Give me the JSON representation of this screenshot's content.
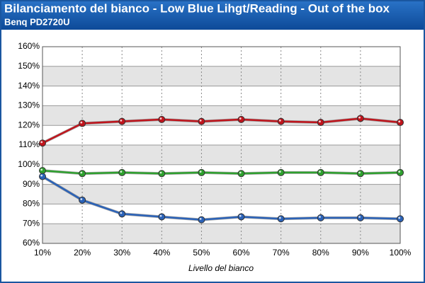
{
  "chart_data": {
    "type": "line",
    "title": "Bilanciamento del bianco - Low Blue Lihgt/Reading - Out of the box",
    "subtitle": "Benq PD2720U",
    "x_label": "Livello del bianco",
    "categories": [
      "10%",
      "20%",
      "30%",
      "40%",
      "50%",
      "60%",
      "70%",
      "80%",
      "90%",
      "100%"
    ],
    "series": [
      {
        "color": "#c0141c",
        "values": [
          111,
          121,
          122,
          123,
          122,
          123,
          122,
          121.5,
          123.5,
          121.5
        ]
      },
      {
        "color": "#2ea02e",
        "values": [
          97,
          95.5,
          96,
          95.5,
          96,
          95.5,
          96,
          96,
          95.5,
          96
        ]
      },
      {
        "color": "#2a62b8",
        "values": [
          94,
          82,
          75,
          73.5,
          72,
          73.5,
          72.5,
          73,
          73,
          72.5
        ]
      }
    ],
    "ylim": [
      60,
      160
    ],
    "yticks": [
      {
        "value": 60,
        "label": "60%"
      },
      {
        "value": 70,
        "label": "70%"
      },
      {
        "value": 80,
        "label": "80%"
      },
      {
        "value": 90,
        "label": "90%"
      },
      {
        "value": 100,
        "label": "100%"
      },
      {
        "value": 110,
        "label": "110%"
      },
      {
        "value": 120,
        "label": "120%"
      },
      {
        "value": 130,
        "label": "130%"
      },
      {
        "value": 140,
        "label": "140%"
      },
      {
        "value": 150,
        "label": "150%"
      },
      {
        "value": 160,
        "label": "160%"
      }
    ],
    "grid": true
  }
}
